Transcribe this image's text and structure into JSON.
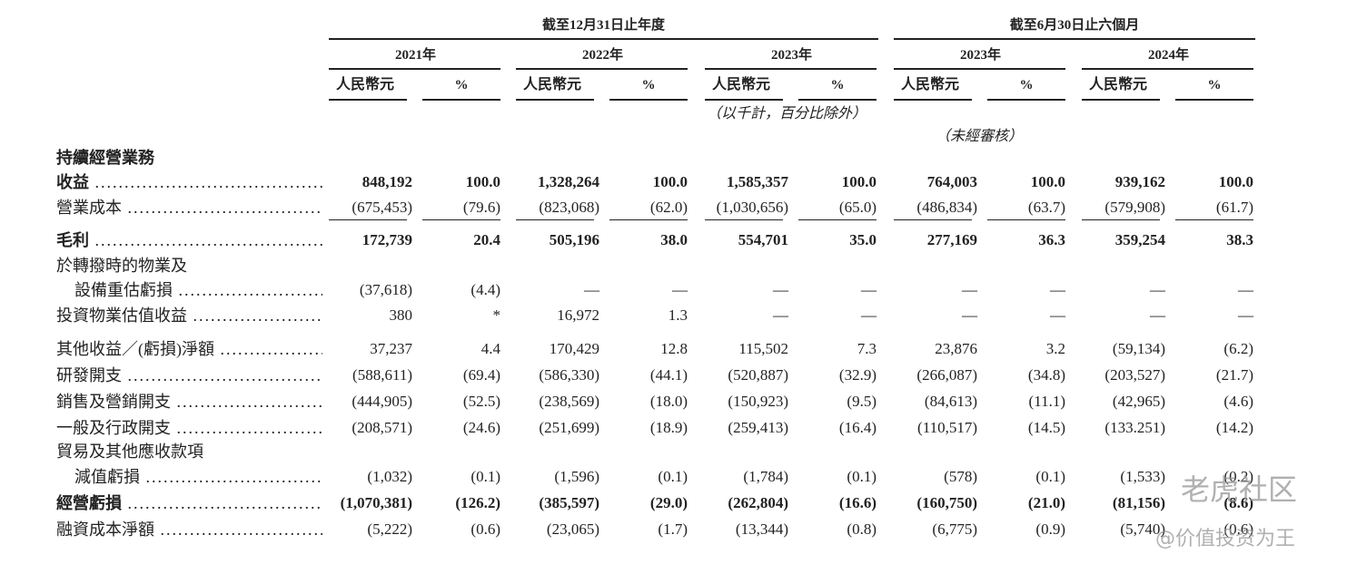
{
  "header": {
    "groups": [
      {
        "title": "截至12月31日止年度",
        "years": [
          "2021年",
          "2022年",
          "2023年"
        ]
      },
      {
        "title": "截至6月30日止六個月",
        "years": [
          "2023年",
          "2024年"
        ]
      }
    ],
    "units": [
      "人民幣元",
      "%"
    ],
    "notes": [
      "（以千計，百分比除外）",
      "（未經審核）"
    ]
  },
  "table": {
    "rows": [
      {
        "label": [
          "持續經營業務"
        ],
        "bold": true
      },
      {
        "label": [
          "收益"
        ],
        "bold": true,
        "values": [
          "848,192",
          "100.0",
          "1,328,264",
          "100.0",
          "1,585,357",
          "100.0",
          "764,003",
          "100.0",
          "939,162",
          "100.0"
        ]
      },
      {
        "label": [
          "營業成本"
        ],
        "rule": true,
        "values": [
          "(675,453)",
          "(79.6)",
          "(823,068)",
          "(62.0)",
          "(1,030,656)",
          "(65.0)",
          "(486,834)",
          "(63.7)",
          "(579,908)",
          "(61.7)"
        ]
      },
      {
        "label": [
          "毛利"
        ],
        "bold": true,
        "values": [
          "172,739",
          "20.4",
          "505,196",
          "38.0",
          "554,701",
          "35.0",
          "277,169",
          "36.3",
          "359,254",
          "38.3"
        ]
      },
      {
        "label": [
          "於轉撥時的物業及",
          "設備重估虧損"
        ],
        "values": [
          "(37,618)",
          "(4.4)",
          "—",
          "—",
          "—",
          "—",
          "—",
          "—",
          "—",
          "—"
        ]
      },
      {
        "label": [
          "投資物業估值收益"
        ],
        "values": [
          "380",
          "*",
          "16,972",
          "1.3",
          "—",
          "—",
          "—",
          "—",
          "—",
          "—"
        ]
      },
      {
        "label": [
          "其他收益／(虧損)淨額"
        ],
        "values": [
          "37,237",
          "4.4",
          "170,429",
          "12.8",
          "115,502",
          "7.3",
          "23,876",
          "3.2",
          "(59,134)",
          "(6.2)"
        ]
      },
      {
        "label": [
          "研發開支"
        ],
        "values": [
          "(588,611)",
          "(69.4)",
          "(586,330)",
          "(44.1)",
          "(520,887)",
          "(32.9)",
          "(266,087)",
          "(34.8)",
          "(203,527)",
          "(21.7)"
        ]
      },
      {
        "label": [
          "銷售及營銷開支"
        ],
        "values": [
          "(444,905)",
          "(52.5)",
          "(238,569)",
          "(18.0)",
          "(150,923)",
          "(9.5)",
          "(84,613)",
          "(11.1)",
          "(42,965)",
          "(4.6)"
        ]
      },
      {
        "label": [
          "一般及行政開支"
        ],
        "values": [
          "(208,571)",
          "(24.6)",
          "(251,699)",
          "(18.9)",
          "(259,413)",
          "(16.4)",
          "(110,517)",
          "(14.5)",
          "(133.251)",
          "(14.2)"
        ]
      },
      {
        "label": [
          "貿易及其他應收款項",
          "減值虧損"
        ],
        "values": [
          "(1,032)",
          "(0.1)",
          "(1,596)",
          "(0.1)",
          "(1,784)",
          "(0.1)",
          "(578)",
          "(0.1)",
          "(1,533)",
          "(0.2)"
        ]
      },
      {
        "label": [
          "經營虧損"
        ],
        "bold": true,
        "values": [
          "(1,070,381)",
          "(126.2)",
          "(385,597)",
          "(29.0)",
          "(262,804)",
          "(16.6)",
          "(160,750)",
          "(21.0)",
          "(81,156)",
          "(8.6)"
        ]
      },
      {
        "label": [
          "融資成本淨額"
        ],
        "values": [
          "(5,222)",
          "(0.6)",
          "(23,065)",
          "(1.7)",
          "(13,344)",
          "(0.8)",
          "(6,775)",
          "(0.9)",
          "(5,740)",
          "(0.6)"
        ]
      }
    ]
  },
  "watermark": [
    "老虎社区",
    "@价值投资为王"
  ]
}
